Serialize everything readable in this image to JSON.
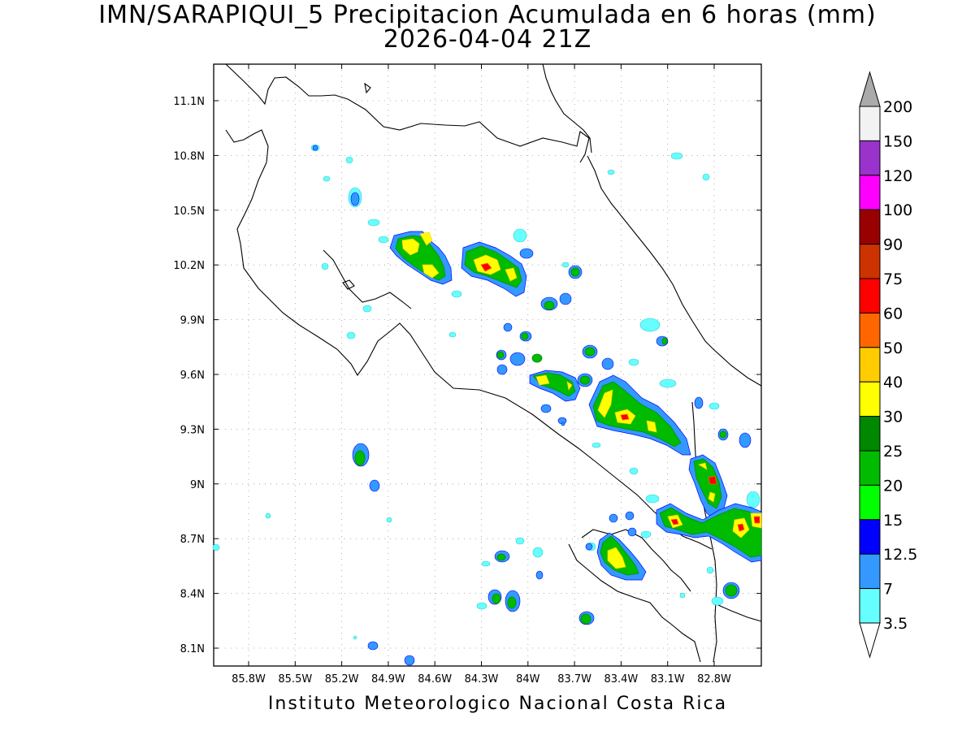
{
  "title": {
    "line1": "IMN/SARAPIQUI_5 Precipitacion Acumulada en 6 horas (mm)",
    "line2": "2026-04-04 21Z"
  },
  "footer": "Instituto Meteorologico Nacional Costa Rica",
  "axes": {
    "lon_ticks": [
      "85.8W",
      "85.5W",
      "85.2W",
      "84.9W",
      "84.6W",
      "84.3W",
      "84W",
      "83.7W",
      "83.4W",
      "83.1W",
      "82.8W"
    ],
    "lat_ticks": [
      "11.1N",
      "10.8N",
      "10.5N",
      "10.2N",
      "9.9N",
      "9.6N",
      "9.3N",
      "9N",
      "8.7N",
      "8.4N",
      "8.1N"
    ],
    "grid": true
  },
  "colorbar": {
    "labels": [
      "200",
      "150",
      "120",
      "100",
      "90",
      "75",
      "60",
      "50",
      "40",
      "30",
      "25",
      "20",
      "15",
      "12.5",
      "7",
      "3.5"
    ],
    "colors": {
      "over": "#aaaaaa",
      "150-200": "#f2f2f2",
      "120-150": "#9933cc",
      "100-120": "#ff00ff",
      "90-100": "#990000",
      "75-90": "#cc3300",
      "60-75": "#ff0000",
      "50-60": "#ff6600",
      "40-50": "#ffcc00",
      "30-40": "#ffff00",
      "25-30": "#008800",
      "20-25": "#00bb00",
      "15-20": "#00ff00",
      "12.5-15": "#0000ff",
      "7-12.5": "#3399ff",
      "3.5-7": "#66ffff",
      "under": "#ffffff"
    }
  }
}
